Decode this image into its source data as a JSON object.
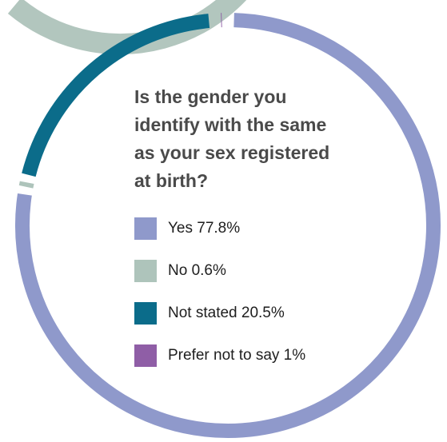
{
  "chart_data": {
    "type": "pie",
    "title": "Is the gender you identify with the same as your sex registered at birth?",
    "categories": [
      "Yes",
      "No",
      "Not stated",
      "Prefer not to say"
    ],
    "values": [
      77.8,
      0.6,
      20.5,
      1
    ],
    "colors": [
      "#8f99cb",
      "#aec4bb",
      "#0b6c8a",
      "#8f5ea6"
    ],
    "legend": [
      {
        "label": "Yes 77.8%",
        "color": "#8f99cb"
      },
      {
        "label": "No 0.6%",
        "color": "#aec4bb"
      },
      {
        "label": "Not stated 20.5%",
        "color": "#0b6c8a"
      },
      {
        "label": "Prefer not to say 1%",
        "color": "#8f5ea6"
      }
    ],
    "legend_position": "inside-center",
    "donut": true
  }
}
